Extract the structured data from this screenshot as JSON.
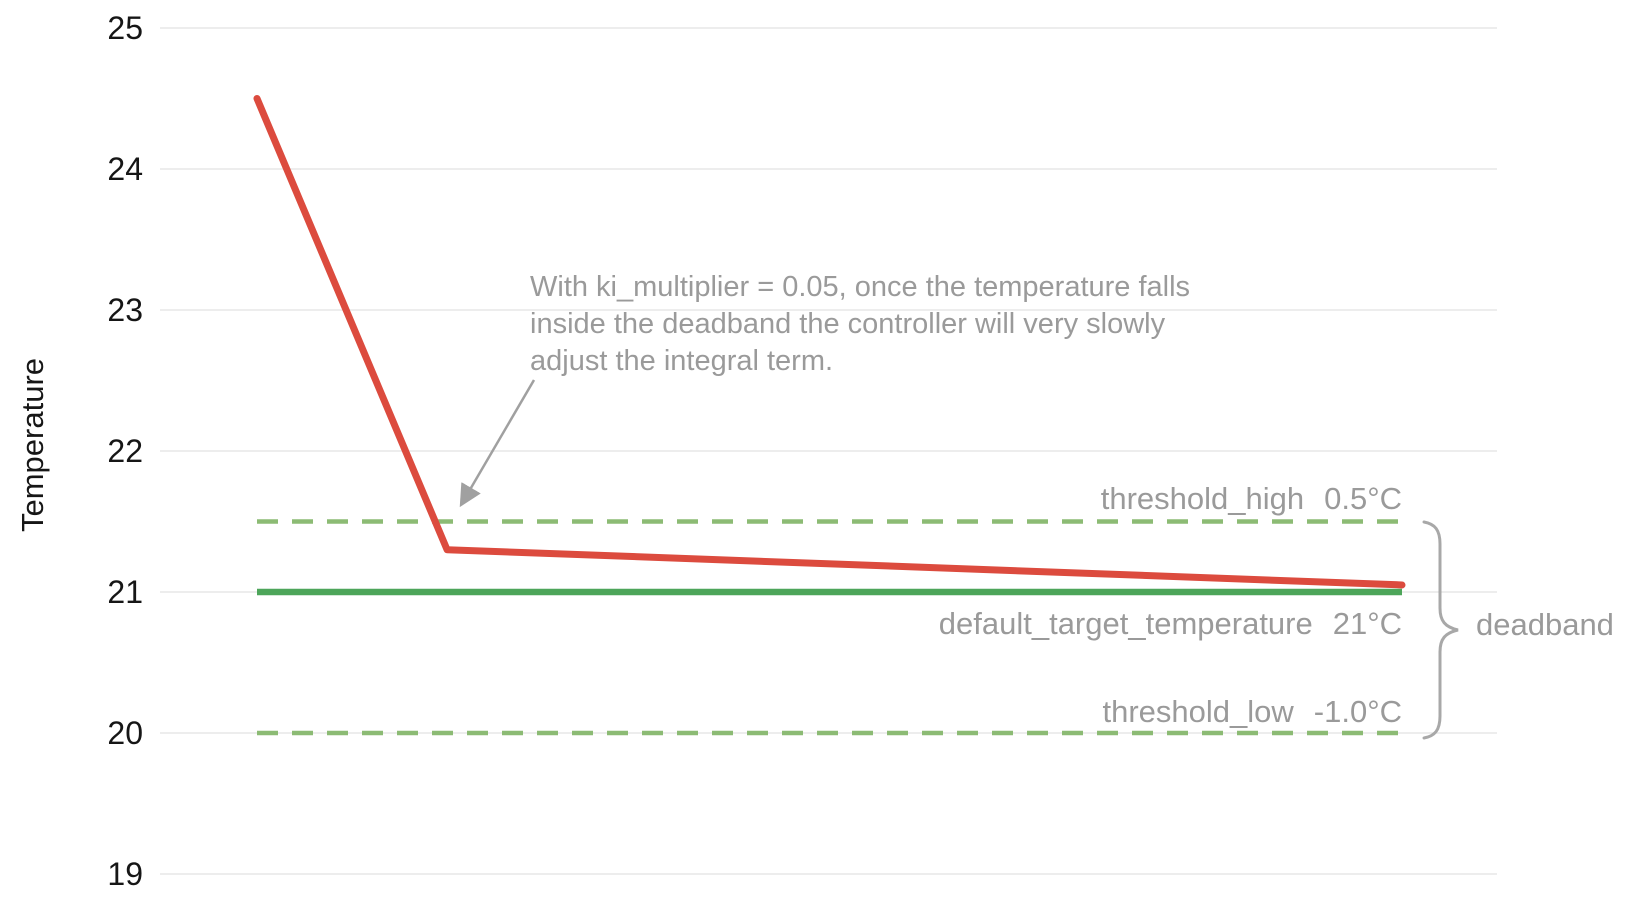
{
  "chart_data": {
    "type": "line",
    "title": "",
    "xlabel": "",
    "ylabel": "Temperature",
    "ylim": [
      19,
      25
    ],
    "yticks": [
      25,
      24,
      23,
      22,
      21,
      20,
      19
    ],
    "grid": "horizontal",
    "legend": "none",
    "series": [
      {
        "name": "temperature",
        "color": "#dc4b3e",
        "points": [
          {
            "x_frac": 0.0,
            "y": 24.5
          },
          {
            "x_frac": 0.166,
            "y": 21.3
          },
          {
            "x_frac": 1.0,
            "y": 21.05
          }
        ]
      }
    ],
    "reference_lines": [
      {
        "name": "threshold-high",
        "value": 21.5,
        "style": "dashed",
        "color": "#8cbb74",
        "label": "threshold_high",
        "value_label": "0.5°C"
      },
      {
        "name": "default-target-temperature",
        "value": 21,
        "style": "solid",
        "color": "#4da55a",
        "label": "default_target_temperature",
        "value_label": "21°C"
      },
      {
        "name": "threshold-low",
        "value": 20,
        "style": "dashed",
        "color": "#8cbb74",
        "label": "threshold_low",
        "value_label": "-1.0°C"
      }
    ],
    "annotation": {
      "lines": [
        "With ki_multiplier = 0.05, once the temperature falls",
        "inside the deadband the controller will very slowly",
        "adjust the integral term."
      ]
    },
    "brace_label": "deadband"
  },
  "colors": {
    "gridline": "#ededed",
    "annotation_text": "#9a9a9a",
    "arrow": "#a0a0a0",
    "brace": "#a8a8a8",
    "axis_text": "#161616"
  }
}
